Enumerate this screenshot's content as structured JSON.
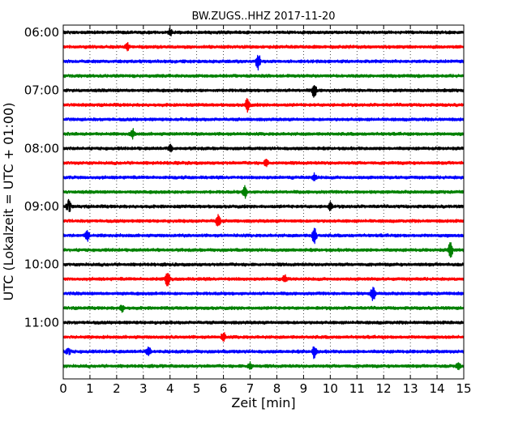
{
  "chart_data": {
    "type": "line",
    "title": "BW.ZUGS..HHZ 2017-11-20",
    "xlabel": "Zeit  [min]",
    "ylabel": "UTC (Lokalzeit = UTC + 01:00)",
    "xlim": [
      0,
      15
    ],
    "x_ticks": [
      "0",
      "1",
      "2",
      "3",
      "4",
      "5",
      "6",
      "7",
      "8",
      "9",
      "10",
      "11",
      "12",
      "13",
      "14",
      "15"
    ],
    "y_ticks": [
      "06:00",
      "07:00",
      "08:00",
      "09:00",
      "10:00",
      "11:00"
    ],
    "grid": "vertical dotted",
    "colors": [
      "#000000",
      "#ff0000",
      "#0000ff",
      "#008000"
    ],
    "trace_count": 24,
    "trace_interval_min": 15,
    "first_trace": "06:00",
    "events": [
      {
        "trace": 0,
        "minute": 4.0,
        "amp": 0.45
      },
      {
        "trace": 1,
        "minute": 2.4,
        "amp": 0.5
      },
      {
        "trace": 2,
        "minute": 7.3,
        "amp": 1.1
      },
      {
        "trace": 4,
        "minute": 9.4,
        "amp": 1.0
      },
      {
        "trace": 5,
        "minute": 6.9,
        "amp": 1.0
      },
      {
        "trace": 7,
        "minute": 2.6,
        "amp": 0.6
      },
      {
        "trace": 8,
        "minute": 4.0,
        "amp": 0.45
      },
      {
        "trace": 9,
        "minute": 7.6,
        "amp": 0.45
      },
      {
        "trace": 10,
        "minute": 9.4,
        "amp": 0.5
      },
      {
        "trace": 11,
        "minute": 6.8,
        "amp": 0.8
      },
      {
        "trace": 12,
        "minute": 0.2,
        "amp": 0.9
      },
      {
        "trace": 12,
        "minute": 10.0,
        "amp": 0.5
      },
      {
        "trace": 13,
        "minute": 5.8,
        "amp": 1.0
      },
      {
        "trace": 14,
        "minute": 0.9,
        "amp": 0.8
      },
      {
        "trace": 14,
        "minute": 9.4,
        "amp": 1.3
      },
      {
        "trace": 15,
        "minute": 14.5,
        "amp": 1.2
      },
      {
        "trace": 17,
        "minute": 3.9,
        "amp": 1.1
      },
      {
        "trace": 17,
        "minute": 8.3,
        "amp": 0.5
      },
      {
        "trace": 18,
        "minute": 11.6,
        "amp": 1.1
      },
      {
        "trace": 19,
        "minute": 2.2,
        "amp": 0.5
      },
      {
        "trace": 21,
        "minute": 6.0,
        "amp": 0.6
      },
      {
        "trace": 22,
        "minute": 0.2,
        "amp": 0.6
      },
      {
        "trace": 22,
        "minute": 3.2,
        "amp": 0.6
      },
      {
        "trace": 22,
        "minute": 9.4,
        "amp": 0.9
      },
      {
        "trace": 23,
        "minute": 7.0,
        "amp": 0.5
      },
      {
        "trace": 23,
        "minute": 14.8,
        "amp": 0.5
      }
    ]
  }
}
